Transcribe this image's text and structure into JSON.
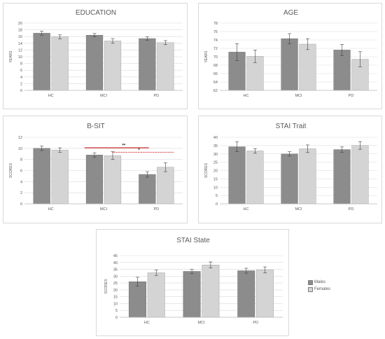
{
  "colors": {
    "males": "#8c8c8c",
    "females": "#d4d4d4",
    "sig_line": "#c00000",
    "grid": "#d9d9d9"
  },
  "legend": {
    "items": [
      "Males",
      "Females"
    ]
  },
  "chart_data": [
    {
      "type": "bar",
      "title": "EDUCATION",
      "ylabel": "YEARS",
      "categories": [
        "HC",
        "MCI",
        "PD"
      ],
      "ylim": [
        0,
        20
      ],
      "ystep": 2,
      "series": [
        {
          "name": "Males",
          "values": [
            17.0,
            16.4,
            15.4
          ],
          "err": [
            0.6,
            0.5,
            0.5
          ]
        },
        {
          "name": "Females",
          "values": [
            15.9,
            14.7,
            14.2
          ],
          "err": [
            0.6,
            0.7,
            0.6
          ]
        }
      ]
    },
    {
      "type": "bar",
      "title": "AGE",
      "ylabel": "YEARS",
      "categories": [
        "HC",
        "MCI",
        "PD"
      ],
      "ylim": [
        62,
        78
      ],
      "ystep": 2,
      "series": [
        {
          "name": "Males",
          "values": [
            71.1,
            74.3,
            71.6
          ],
          "err": [
            2.0,
            1.2,
            1.3
          ]
        },
        {
          "name": "Females",
          "values": [
            70.1,
            73.0,
            69.4
          ],
          "err": [
            1.5,
            1.3,
            1.8
          ]
        }
      ]
    },
    {
      "type": "bar",
      "title": "B-SIT",
      "ylabel": "SCORES",
      "categories": [
        "HC",
        "MCI",
        "PD"
      ],
      "ylim": [
        0,
        12
      ],
      "ystep": 2,
      "series": [
        {
          "name": "Males",
          "values": [
            10.0,
            8.8,
            5.3
          ],
          "err": [
            0.4,
            0.4,
            0.5
          ]
        },
        {
          "name": "Females",
          "values": [
            9.7,
            8.7,
            6.6
          ],
          "err": [
            0.4,
            0.7,
            0.8
          ]
        }
      ],
      "annotations": [
        {
          "label": "**",
          "style": "solid",
          "y": 10.1
        },
        {
          "label": "*",
          "style": "dotted",
          "y": 9.3
        }
      ]
    },
    {
      "type": "bar",
      "title": "STAI Trait",
      "ylabel": "SCORES",
      "categories": [
        "HC",
        "MCI",
        "PD"
      ],
      "ylim": [
        0,
        40
      ],
      "ystep": 5,
      "series": [
        {
          "name": "Males",
          "values": [
            34.3,
            30.0,
            32.6
          ],
          "err": [
            3.0,
            1.3,
            1.6
          ]
        },
        {
          "name": "Females",
          "values": [
            31.8,
            33.1,
            35.1
          ],
          "err": [
            1.4,
            2.3,
            2.3
          ]
        }
      ]
    },
    {
      "type": "bar",
      "title": "STAI State",
      "ylabel": "SCORES",
      "categories": [
        "HC",
        "MCI",
        "PD"
      ],
      "ylim": [
        0,
        45
      ],
      "ystep": 5,
      "series": [
        {
          "name": "Males",
          "values": [
            26.0,
            33.5,
            34.0
          ],
          "err": [
            3.2,
            1.5,
            1.8
          ]
        },
        {
          "name": "Females",
          "values": [
            32.5,
            38.2,
            34.6
          ],
          "err": [
            2.0,
            2.2,
            2.2
          ]
        }
      ]
    }
  ]
}
